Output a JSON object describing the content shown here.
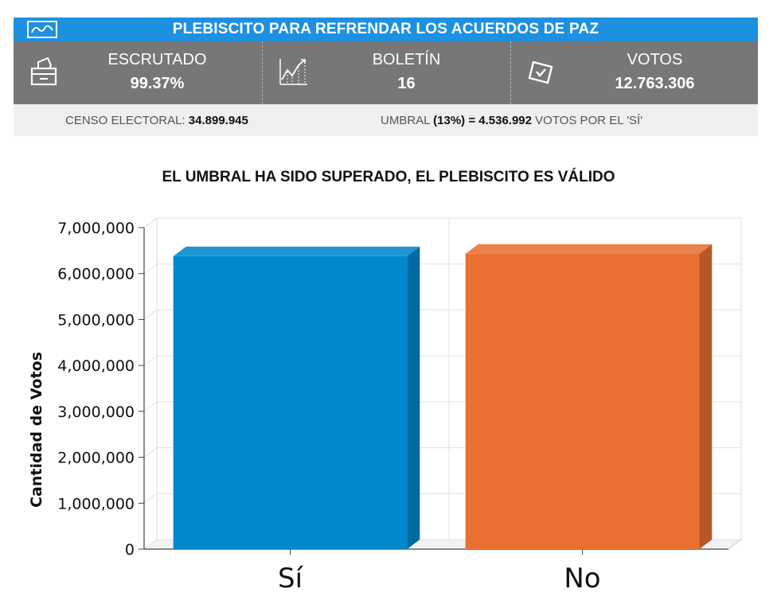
{
  "header": {
    "logo_icon": "colombia-registry-logo-icon",
    "title": "PLEBISCITO PARA REFRENDAR LOS ACUERDOS DE PAZ"
  },
  "stats": [
    {
      "icon": "ballot-box-icon",
      "label": "ESCRUTADO",
      "value": "99.37%"
    },
    {
      "icon": "line-chart-icon",
      "label": "BOLETÍN",
      "value": "16"
    },
    {
      "icon": "vote-ballot-icon",
      "label": "VOTOS",
      "value": "12.763.306"
    }
  ],
  "info": {
    "census_label": "CENSO ELECTORAL:",
    "census_value": "34.899.945",
    "threshold_label": "UMBRAL",
    "threshold_value": "(13%) = 4.536.992",
    "threshold_suffix": "VOTOS POR EL 'SÍ'"
  },
  "status_message": "EL UMBRAL HA SIDO SUPERADO, EL PLEBISCITO ES VÁLIDO",
  "colors": {
    "header_blue": "#1e90e0",
    "stats_gray": "#777777",
    "si_blue": "#0088cc",
    "no_orange": "#e87032"
  },
  "chart_data": {
    "type": "bar",
    "title": "",
    "xlabel": "",
    "ylabel": "Cantidad de Votos",
    "categories": [
      "Sí",
      "No"
    ],
    "values": [
      6377482,
      6431376
    ],
    "ylim": [
      0,
      7000000
    ],
    "yticks": [
      "0",
      "1,000,000",
      "2,000,000",
      "3,000,000",
      "4,000,000",
      "5,000,000",
      "6,000,000",
      "7,000,000"
    ],
    "bar_colors": [
      "#0088cc",
      "#e87032"
    ],
    "grid": true,
    "legend": "none"
  }
}
